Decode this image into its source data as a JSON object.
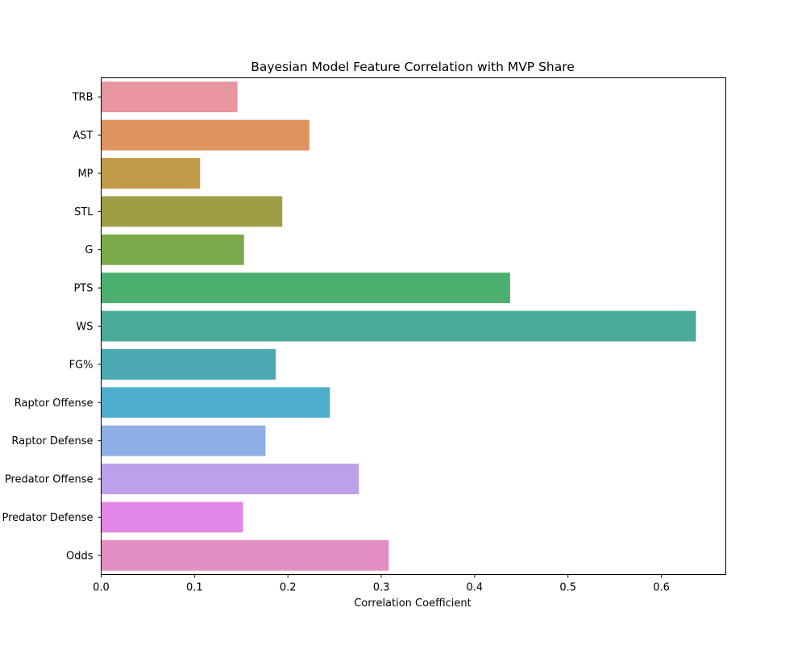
{
  "chart_data": {
    "type": "bar",
    "orientation": "horizontal",
    "title": "Bayesian Model Feature Correlation with MVP Share",
    "xlabel": "Correlation Coefficient",
    "ylabel": "",
    "xlim": [
      0,
      0.669
    ],
    "xticks": [
      "0.0",
      "0.1",
      "0.2",
      "0.3",
      "0.4",
      "0.5",
      "0.6"
    ],
    "grid": false,
    "categories": [
      "TRB",
      "AST",
      "MP",
      "STL",
      "G",
      "PTS",
      "WS",
      "FG%",
      "Raptor Offense",
      "Raptor Defense",
      "Predator Offense",
      "Predator Defense",
      "Odds"
    ],
    "values": [
      0.146,
      0.223,
      0.106,
      0.194,
      0.153,
      0.438,
      0.637,
      0.187,
      0.245,
      0.176,
      0.276,
      0.152,
      0.308
    ],
    "colors": [
      "#e8969f",
      "#e0935f",
      "#c29a47",
      "#a09e45",
      "#7caa49",
      "#4caf70",
      "#4aab9b",
      "#4aa9b3",
      "#4eaecd",
      "#8eaee5",
      "#bda0e9",
      "#e387e8",
      "#e48fc3"
    ]
  }
}
